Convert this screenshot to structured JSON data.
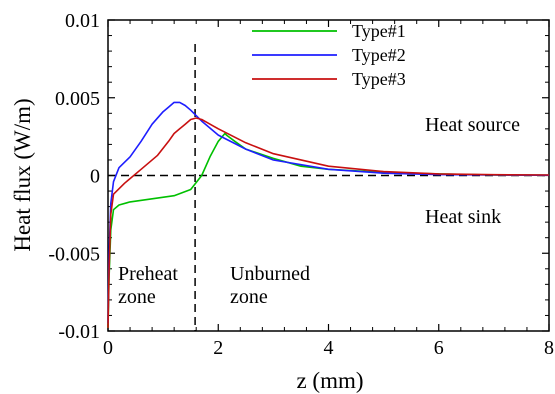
{
  "chart_data": {
    "type": "line",
    "xlabel": "z (mm)",
    "ylabel": "Heat flux (W/m)",
    "xlim": [
      0,
      8
    ],
    "ylim": [
      -0.01,
      0.01
    ],
    "x_ticks": [
      "0",
      "2",
      "4",
      "6",
      "8"
    ],
    "y_ticks": [
      "-0.01",
      "-0.005",
      "0",
      "0.005",
      "0.01"
    ],
    "grid": false,
    "legend_position": "top",
    "reference_lines": {
      "horizontal_y": 0,
      "vertical_x": 1.58,
      "style": "dashed"
    },
    "annotations": {
      "heat_source": "Heat source",
      "heat_sink": "Heat sink",
      "preheat_line1": "Preheat",
      "preheat_line2": "zone",
      "unburned_line1": "Unburned",
      "unburned_line2": "zone"
    },
    "series": [
      {
        "name": "Type#1",
        "color": "#00c000",
        "x": [
          0,
          0.02,
          0.05,
          0.1,
          0.2,
          0.4,
          0.8,
          1.2,
          1.5,
          1.7,
          1.85,
          2.0,
          2.12,
          2.15,
          2.3,
          2.5,
          3.0,
          3.5,
          4.0,
          5.0,
          6.0,
          7.0,
          8.0
        ],
        "y": [
          -0.0098,
          -0.0065,
          -0.0035,
          -0.0022,
          -0.0019,
          -0.0017,
          -0.0015,
          -0.0013,
          -0.0009,
          0.0,
          0.0012,
          0.0022,
          0.0027,
          0.0026,
          0.0022,
          0.0017,
          0.0011,
          0.0006,
          0.0004,
          0.0002,
          0.0001,
          3e-05,
          2e-05
        ]
      },
      {
        "name": "Type#2",
        "color": "#1e1eff",
        "x": [
          0,
          0.02,
          0.05,
          0.1,
          0.2,
          0.4,
          0.6,
          0.8,
          1.0,
          1.1,
          1.2,
          1.3,
          1.4,
          1.5,
          1.7,
          2.0,
          2.5,
          3.0,
          4.0,
          5.0,
          6.0,
          7.0,
          8.0
        ],
        "y": [
          -0.0095,
          -0.005,
          -0.0018,
          -0.0004,
          0.0005,
          0.0012,
          0.0022,
          0.0033,
          0.0041,
          0.0044,
          0.0047,
          0.0047,
          0.0045,
          0.0042,
          0.0035,
          0.0026,
          0.0017,
          0.001,
          0.0004,
          0.00015,
          6e-05,
          3e-05,
          2e-05
        ]
      },
      {
        "name": "Type#3",
        "color": "#c81010",
        "x": [
          0,
          0.02,
          0.05,
          0.1,
          0.3,
          0.6,
          0.9,
          1.1,
          1.2,
          1.3,
          1.4,
          1.5,
          1.6,
          1.7,
          1.8,
          1.9,
          2.0,
          2.5,
          3.0,
          4.0,
          5.0,
          6.0,
          7.0,
          8.0
        ],
        "y": [
          -0.0098,
          -0.006,
          -0.0025,
          -0.0012,
          -0.0005,
          0.0004,
          0.0013,
          0.0022,
          0.0027,
          0.003,
          0.0033,
          0.0036,
          0.0037,
          0.0036,
          0.0034,
          0.0032,
          0.003,
          0.0021,
          0.0014,
          0.0006,
          0.00025,
          0.0001,
          5e-05,
          3e-05
        ]
      }
    ]
  }
}
